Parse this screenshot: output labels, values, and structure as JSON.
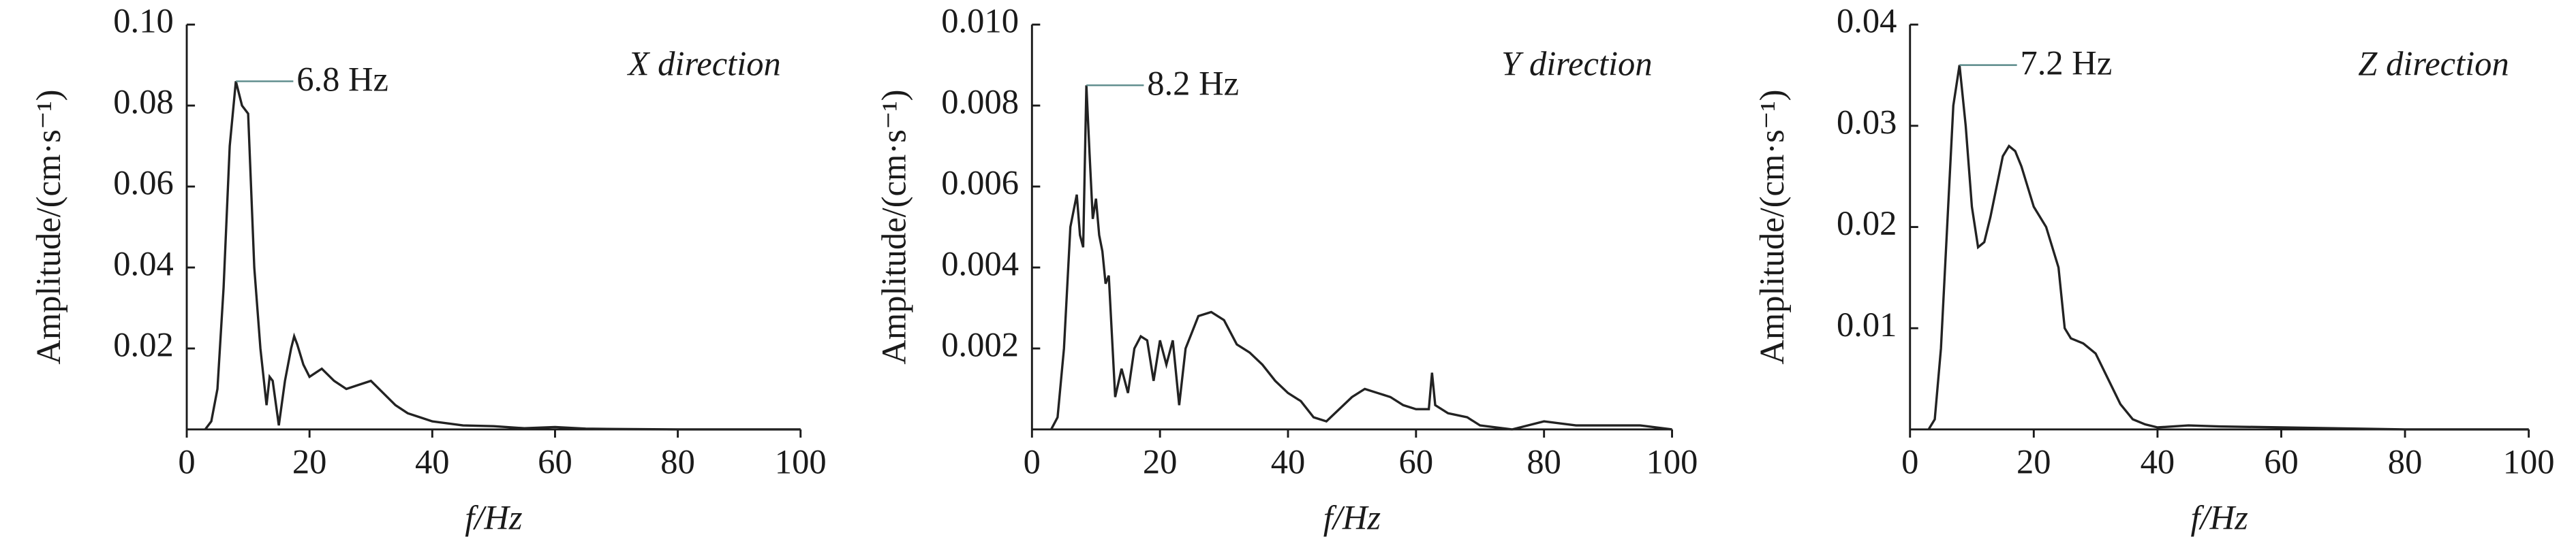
{
  "chart_data": [
    {
      "type": "line",
      "ylabel": "Amplitude/(cm·s⁻¹)",
      "xlabel": "f/Hz",
      "annotation": "X direction",
      "peak_label": "6.8 Hz",
      "color": "#222222",
      "xlim": [
        0,
        100
      ],
      "xticks": [
        0,
        20,
        40,
        60,
        80,
        100
      ],
      "ylim": [
        0,
        0.1
      ],
      "yticks": [
        0.02,
        0.04,
        0.06,
        0.08,
        {
          "value": 0.1,
          "label": "0.10"
        }
      ],
      "x": [
        3,
        4,
        5,
        6,
        7,
        8,
        9,
        10,
        11,
        12,
        13,
        13.5,
        14,
        15,
        16,
        17,
        17.5,
        18,
        19,
        20,
        21,
        22,
        24,
        26,
        28,
        30,
        32,
        34,
        36,
        38,
        40,
        45,
        50,
        55,
        60,
        65,
        70,
        80,
        90,
        100
      ],
      "values": [
        0,
        0.002,
        0.01,
        0.035,
        0.07,
        0.086,
        0.08,
        0.078,
        0.04,
        0.02,
        0.006,
        0.013,
        0.012,
        0.001,
        0.012,
        0.02,
        0.023,
        0.021,
        0.016,
        0.013,
        0.014,
        0.015,
        0.012,
        0.01,
        0.011,
        0.012,
        0.009,
        0.006,
        0.004,
        0.003,
        0.002,
        0.001,
        0.0008,
        0.0003,
        0.0006,
        0.0002,
        0.0001,
        0,
        0,
        0
      ]
    },
    {
      "type": "line",
      "ylabel": "Amplitude/(cm·s⁻¹)",
      "xlabel": "f/Hz",
      "annotation": "Y direction",
      "peak_label": "8.2 Hz",
      "color": "#222222",
      "xlim": [
        0,
        100
      ],
      "xticks": [
        0,
        20,
        40,
        60,
        80,
        100
      ],
      "ylim": [
        0,
        0.01
      ],
      "yticks": [
        0.002,
        0.004,
        0.006,
        0.008,
        {
          "value": 0.01,
          "label": "0.010"
        }
      ],
      "x": [
        3,
        4,
        5,
        6,
        7,
        7.5,
        8,
        8.5,
        9,
        9.5,
        10,
        10.5,
        11,
        11.5,
        12,
        13,
        14,
        15,
        16,
        17,
        18,
        19,
        20,
        21,
        22,
        23,
        24,
        25,
        26,
        28,
        30,
        32,
        34,
        36,
        38,
        40,
        42,
        44,
        46,
        48,
        50,
        52,
        54,
        56,
        58,
        60,
        62,
        62.5,
        63,
        65,
        68,
        70,
        75,
        80,
        85,
        90,
        95,
        100
      ],
      "values": [
        0,
        0.0003,
        0.002,
        0.005,
        0.0058,
        0.0048,
        0.0045,
        0.0085,
        0.0068,
        0.0052,
        0.0057,
        0.0048,
        0.0044,
        0.0036,
        0.0038,
        0.0008,
        0.0015,
        0.0009,
        0.002,
        0.0023,
        0.0022,
        0.0012,
        0.0022,
        0.0016,
        0.0022,
        0.0006,
        0.002,
        0.0024,
        0.0028,
        0.0029,
        0.0027,
        0.0021,
        0.0019,
        0.0016,
        0.0012,
        0.0009,
        0.0007,
        0.0003,
        0.0002,
        0.0005,
        0.0008,
        0.001,
        0.0009,
        0.0008,
        0.0006,
        0.0005,
        0.0005,
        0.0014,
        0.0006,
        0.0004,
        0.0003,
        0.0001,
        0,
        0.0002,
        0.0001,
        0.0001,
        0.0001,
        0
      ]
    },
    {
      "type": "line",
      "ylabel": "Amplitude/(cm·s⁻¹)",
      "xlabel": "f/Hz",
      "annotation": "Z direction",
      "peak_label": "7.2 Hz",
      "color": "#222222",
      "xlim": [
        0,
        100
      ],
      "xticks": [
        0,
        20,
        40,
        60,
        80,
        100
      ],
      "ylim": [
        0,
        0.04
      ],
      "yticks": [
        0.01,
        0.02,
        0.03,
        0.04
      ],
      "x": [
        3,
        4,
        5,
        6,
        7,
        8,
        9,
        10,
        11,
        12,
        13,
        14,
        15,
        16,
        17,
        18,
        19,
        20,
        22,
        24,
        25,
        26,
        28,
        30,
        32,
        34,
        36,
        38,
        40,
        45,
        50,
        60,
        70,
        80,
        90,
        100
      ],
      "values": [
        0,
        0.001,
        0.008,
        0.02,
        0.032,
        0.036,
        0.03,
        0.022,
        0.018,
        0.0185,
        0.021,
        0.024,
        0.027,
        0.028,
        0.0275,
        0.026,
        0.024,
        0.022,
        0.02,
        0.016,
        0.01,
        0.009,
        0.0085,
        0.0075,
        0.005,
        0.0025,
        0.001,
        0.0005,
        0.0002,
        0.0004,
        0.0003,
        0.0002,
        0.0001,
        0,
        0,
        0
      ]
    }
  ]
}
